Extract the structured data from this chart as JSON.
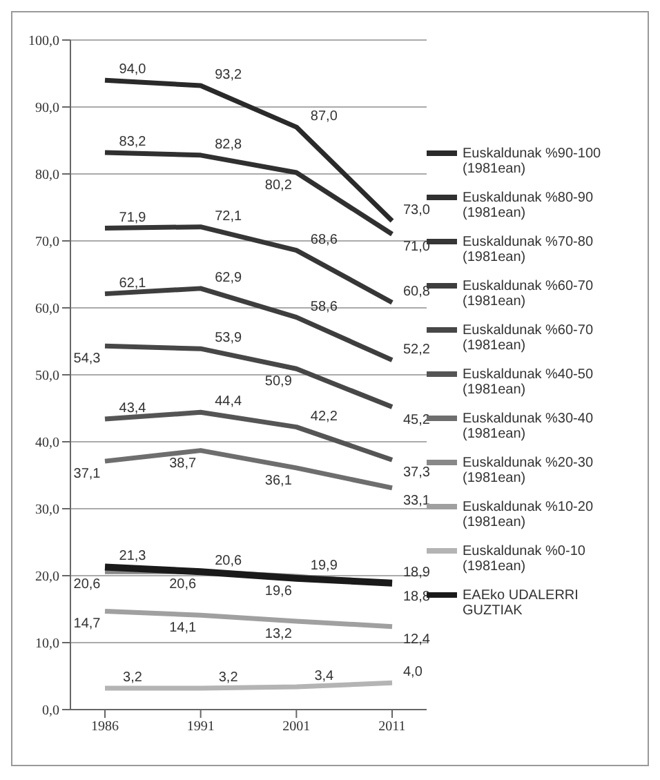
{
  "chart_data": {
    "type": "line",
    "categories": [
      "1986",
      "1991",
      "2001",
      "2011"
    ],
    "series": [
      {
        "name": "Euskaldunak %90-100 (1981ean)",
        "color": "#2a2a2a",
        "values": [
          94.0,
          93.2,
          87.0,
          73.0
        ],
        "value_labels": [
          "94,0",
          "93,2",
          "87,0",
          "73,0"
        ]
      },
      {
        "name": "Euskaldunak %80-90 (1981ean)",
        "color": "#303030",
        "values": [
          83.2,
          82.8,
          80.2,
          71.0
        ],
        "value_labels": [
          "83,2",
          "82,8",
          "80,2",
          "71,0"
        ]
      },
      {
        "name": "Euskaldunak %70-80 (1981ean)",
        "color": "#363636",
        "values": [
          71.9,
          72.1,
          68.6,
          60.8
        ],
        "value_labels": [
          "71,9",
          "72,1",
          "68,6",
          "60,8"
        ]
      },
      {
        "name": "Euskaldunak %60-70 (1981ean)",
        "color": "#3e3e3e",
        "values": [
          62.1,
          62.9,
          58.6,
          52.2
        ],
        "value_labels": [
          "62,1",
          "62,9",
          "58,6",
          "52,2"
        ]
      },
      {
        "name": "Euskaldunak %60-70 (1981ean)",
        "color": "#474747",
        "values": [
          54.3,
          53.9,
          50.9,
          45.2
        ],
        "value_labels": [
          "54,3",
          "53,9",
          "50,9",
          "45,2"
        ]
      },
      {
        "name": "Euskaldunak %40-50 (1981ean)",
        "color": "#555555",
        "values": [
          43.4,
          44.4,
          42.2,
          37.3
        ],
        "value_labels": [
          "43,4",
          "44,4",
          "42,2",
          "37,3"
        ]
      },
      {
        "name": "Euskaldunak %30-40 (1981ean)",
        "color": "#6e6e6e",
        "values": [
          37.1,
          38.7,
          36.1,
          33.1
        ],
        "value_labels": [
          "37,1",
          "38,7",
          "36,1",
          "33,1"
        ]
      },
      {
        "name": "Euskaldunak %20-30 (1981ean)",
        "color": "#888888",
        "values": [
          20.6,
          20.6,
          19.9,
          18.8
        ],
        "value_labels": [
          "20,6",
          "20,6",
          "19,9",
          "18,8"
        ]
      },
      {
        "name": "Euskaldunak %10-20 (1981ean)",
        "color": "#a0a0a0",
        "values": [
          14.7,
          14.1,
          13.2,
          12.4
        ],
        "value_labels": [
          "14,7",
          "14,1",
          "13,2",
          "12,4"
        ]
      },
      {
        "name": "Euskaldunak %0-10 (1981ean)",
        "color": "#b4b4b4",
        "values": [
          3.2,
          3.2,
          3.4,
          4.0
        ],
        "value_labels": [
          "3,2",
          "3,2",
          "3,4",
          "4,0"
        ]
      },
      {
        "name": "EAEko UDALERRI GUZTIAK",
        "color": "#1a1a1a",
        "values": [
          21.3,
          20.6,
          19.6,
          18.9
        ],
        "value_labels": [
          "21,3",
          "20,6",
          "19,6",
          "18,9"
        ]
      }
    ],
    "ylim": [
      0,
      100
    ],
    "yticks": [
      {
        "value": 0,
        "label": "0,0"
      },
      {
        "value": 10,
        "label": "10,0"
      },
      {
        "value": 20,
        "label": "20,0"
      },
      {
        "value": 30,
        "label": "30,0"
      },
      {
        "value": 40,
        "label": "40,0"
      },
      {
        "value": 50,
        "label": "50,0"
      },
      {
        "value": 60,
        "label": "60,0"
      },
      {
        "value": 70,
        "label": "70,0"
      },
      {
        "value": 80,
        "label": "80,0"
      },
      {
        "value": 90,
        "label": "90,0"
      },
      {
        "value": 100,
        "label": "100,0"
      }
    ],
    "grid": "y",
    "legend": "right",
    "marker": "none",
    "line_style": "solid"
  }
}
